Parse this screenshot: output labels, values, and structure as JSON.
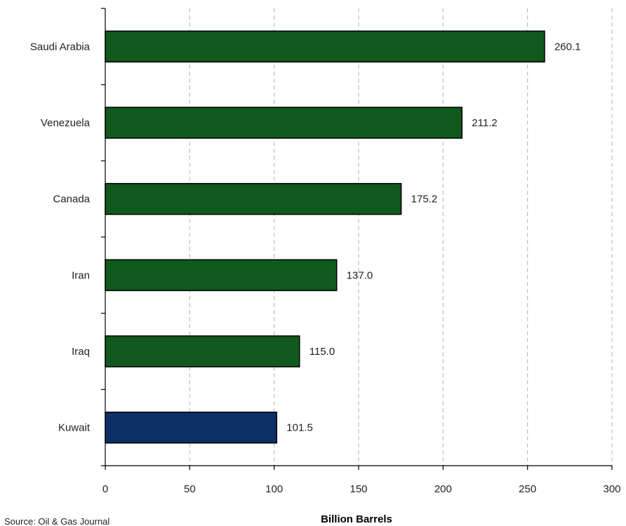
{
  "chart_data": {
    "type": "bar",
    "orientation": "horizontal",
    "categories": [
      "Saudi Arabia",
      "Venezuela",
      "Canada",
      "Iran",
      "Iraq",
      "Kuwait"
    ],
    "values": [
      260.1,
      211.2,
      175.2,
      137.0,
      115.0,
      101.5
    ],
    "value_labels": [
      "260.1",
      "211.2",
      "175.2",
      "137.0",
      "115.0",
      "101.5"
    ],
    "xlabel": "Billion Barrels",
    "xlim": [
      0,
      300
    ],
    "xticks": [
      0,
      50,
      100,
      150,
      200,
      250,
      300
    ],
    "grid": "vertical dashed",
    "colors": {
      "default_bar": "#0f5a1c",
      "highlight_bar": "#0b2f66",
      "bar_outline": "#000000"
    },
    "highlight_category": "Kuwait",
    "source": "Source: Oil & Gas Journal"
  }
}
